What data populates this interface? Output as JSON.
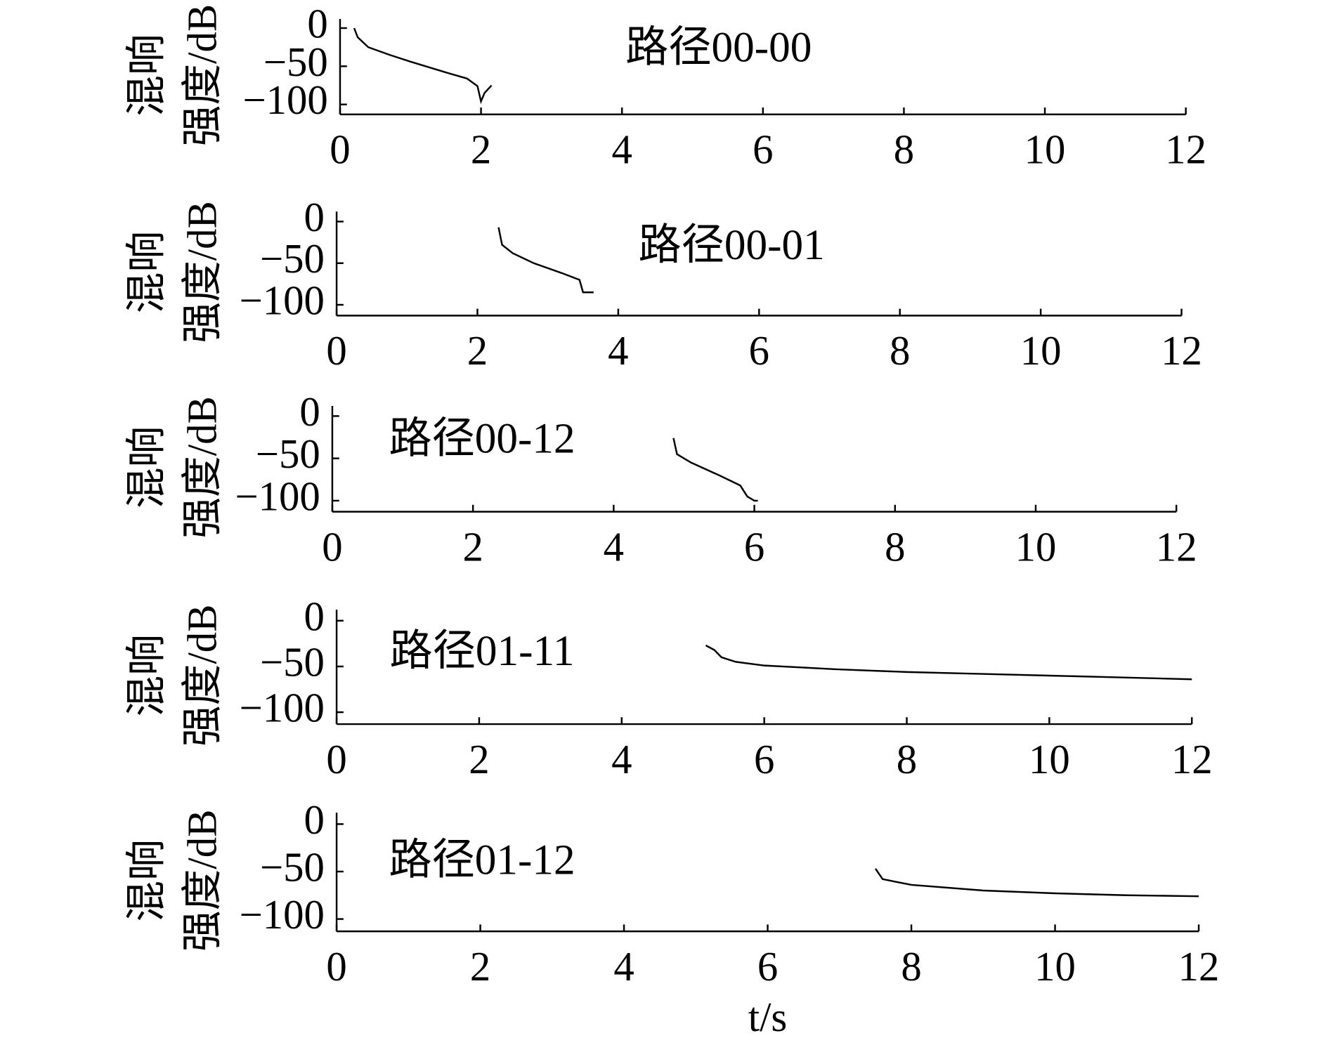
{
  "chart_data": [
    {
      "type": "line",
      "annotation": "路径00-00",
      "ylabel": [
        "混响",
        "强度/dB"
      ],
      "color": "#000000",
      "x": [
        0.2,
        0.25,
        0.4,
        0.7,
        1.0,
        1.5,
        1.8,
        1.95,
        2.0,
        2.05,
        2.15
      ],
      "values": [
        0,
        -12,
        -25,
        -35,
        -44,
        -58,
        -66,
        -76,
        -96,
        -85,
        -75
      ],
      "xlim": [
        0,
        12
      ],
      "ylim": [
        -113,
        12
      ],
      "xticks": [
        0,
        2,
        4,
        6,
        8,
        10,
        12
      ],
      "yticks": [
        0,
        {
          "value": -50,
          "label": "−50"
        },
        {
          "value": -100,
          "label": "−100"
        }
      ]
    },
    {
      "type": "line",
      "annotation": "路径00-01",
      "ylabel": [
        "混响",
        "强度/dB"
      ],
      "color": "#000000",
      "x": [
        2.3,
        2.35,
        2.5,
        2.8,
        3.2,
        3.45,
        3.5,
        3.65
      ],
      "values": [
        -7,
        -28,
        -38,
        -50,
        -62,
        -70,
        -85,
        -85
      ],
      "xlim": [
        0,
        12
      ],
      "ylim": [
        -113,
        12
      ],
      "xticks": [
        0,
        2,
        4,
        6,
        8,
        10,
        12
      ],
      "yticks": [
        0,
        {
          "value": -50,
          "label": "−50"
        },
        {
          "value": -100,
          "label": "−100"
        }
      ]
    },
    {
      "type": "line",
      "annotation": "路径00-12",
      "ylabel": [
        "混响",
        "强度/dB"
      ],
      "color": "#000000",
      "x": [
        4.85,
        4.9,
        5.1,
        5.5,
        5.8,
        5.9,
        6.0,
        6.05
      ],
      "values": [
        -26,
        -45,
        -55,
        -70,
        -82,
        -95,
        -100,
        -100
      ],
      "xlim": [
        0,
        12
      ],
      "ylim": [
        -113,
        12
      ],
      "xticks": [
        0,
        2,
        4,
        6,
        8,
        10,
        12
      ],
      "yticks": [
        0,
        {
          "value": -50,
          "label": "−50"
        },
        {
          "value": -100,
          "label": "−100"
        }
      ]
    },
    {
      "type": "line",
      "annotation": "路径01-11",
      "ylabel": [
        "混响",
        "强度/dB"
      ],
      "color": "#000000",
      "x": [
        5.18,
        5.3,
        5.4,
        5.6,
        6,
        7,
        8,
        9,
        10,
        11,
        12
      ],
      "values": [
        -27,
        -32,
        -40,
        -45,
        -49,
        -53,
        -56,
        -58,
        -60,
        -62,
        -64
      ],
      "xlim": [
        0,
        12
      ],
      "ylim": [
        -113,
        12
      ],
      "xticks": [
        0,
        2,
        4,
        6,
        8,
        10,
        12
      ],
      "yticks": [
        0,
        {
          "value": -50,
          "label": "−50"
        },
        {
          "value": -100,
          "label": "−100"
        }
      ]
    },
    {
      "type": "line",
      "annotation": "路径01-12",
      "ylabel": [
        "混响",
        "强度/dB"
      ],
      "xlabel": "t/s",
      "color": "#000000",
      "x": [
        7.5,
        7.6,
        8,
        9,
        10,
        11,
        12
      ],
      "values": [
        -47,
        -58,
        -64,
        -70,
        -73,
        -75,
        -76
      ],
      "xlim": [
        0,
        12
      ],
      "ylim": [
        -113,
        12
      ],
      "xticks": [
        0,
        2,
        4,
        6,
        8,
        10,
        12
      ],
      "yticks": [
        0,
        {
          "value": -50,
          "label": "−50"
        },
        {
          "value": -100,
          "label": "−100"
        }
      ]
    }
  ]
}
